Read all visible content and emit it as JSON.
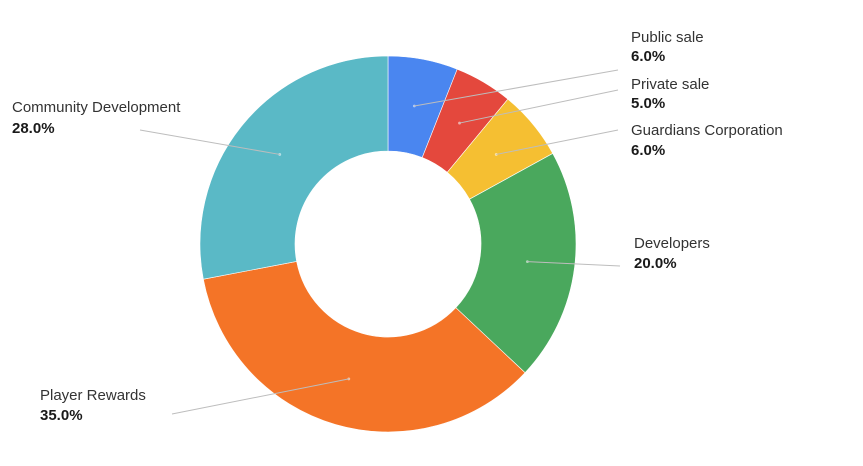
{
  "chart_data": {
    "type": "pie",
    "variant": "donut",
    "slices": [
      {
        "label": "Public sale",
        "value": 6.0,
        "display": "6.0%",
        "color": "#4a86f0"
      },
      {
        "label": "Private sale",
        "value": 5.0,
        "display": "5.0%",
        "color": "#e4483d"
      },
      {
        "label": "Guardians Corporation",
        "value": 6.0,
        "display": "6.0%",
        "color": "#f5bf32"
      },
      {
        "label": "Developers",
        "value": 20.0,
        "display": "20.0%",
        "color": "#4aa85d"
      },
      {
        "label": "Player Rewards",
        "value": 35.0,
        "display": "35.0%",
        "color": "#f47427"
      },
      {
        "label": "Community Development",
        "value": 28.0,
        "display": "28.0%",
        "color": "#5ab9c6"
      }
    ],
    "start_angle_deg": 0,
    "direction": "clockwise",
    "leader_line_color": "#bdbdbd",
    "label_color": "#333333",
    "value_color": "#1a1a1a"
  }
}
